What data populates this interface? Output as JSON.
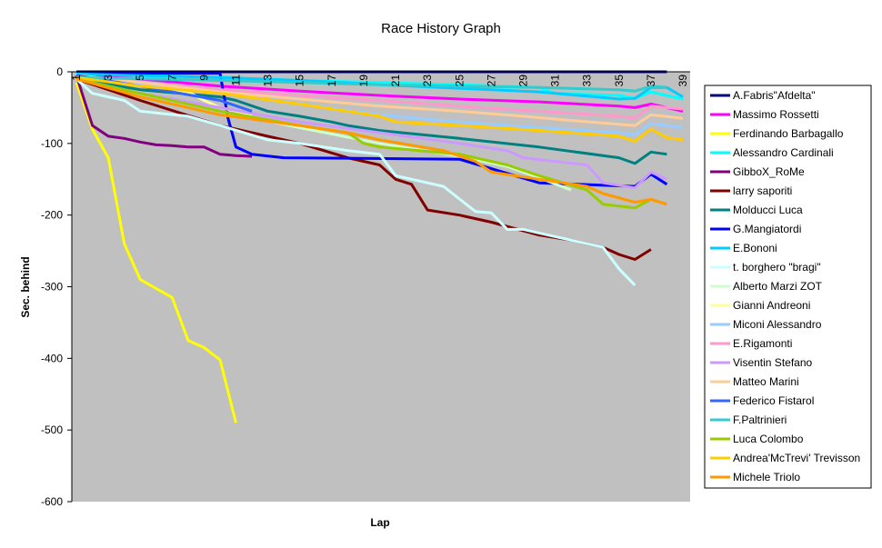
{
  "chart_data": {
    "type": "line",
    "title": "Race History Graph",
    "xlabel": "Lap",
    "ylabel": "Sec. behind",
    "xlim": [
      1,
      39
    ],
    "ylim": [
      -600,
      0
    ],
    "y_ticks": [
      0,
      -100,
      -200,
      -300,
      -400,
      -500,
      -600
    ],
    "x_ticks": [
      1,
      3,
      5,
      7,
      9,
      11,
      13,
      15,
      17,
      19,
      21,
      23,
      25,
      27,
      29,
      31,
      33,
      35,
      37,
      39
    ],
    "grid": false,
    "plot_background": "#c0c0c0",
    "legend_position": "right",
    "series": [
      {
        "name": "A.Fabris\"Afdelta\"",
        "color": "#000080",
        "points": [
          [
            1,
            0
          ],
          [
            38,
            0
          ]
        ]
      },
      {
        "name": "Massimo Rossetti",
        "color": "#ff00ff",
        "points": [
          [
            1,
            -5
          ],
          [
            5,
            -10
          ],
          [
            10,
            -20
          ],
          [
            15,
            -27
          ],
          [
            20,
            -33
          ],
          [
            25,
            -38
          ],
          [
            30,
            -42
          ],
          [
            35,
            -48
          ],
          [
            36,
            -50
          ],
          [
            37,
            -45
          ],
          [
            39,
            -55
          ]
        ]
      },
      {
        "name": "Ferdinando Barbagallo",
        "color": "#ffff00",
        "points": [
          [
            1,
            -15
          ],
          [
            2,
            -80
          ],
          [
            3,
            -120
          ],
          [
            4,
            -240
          ],
          [
            5,
            -290
          ],
          [
            7,
            -315
          ],
          [
            8,
            -375
          ],
          [
            9,
            -385
          ],
          [
            10,
            -402
          ],
          [
            11,
            -490
          ]
        ]
      },
      {
        "name": "Alessandro Cardinali",
        "color": "#00ffff",
        "points": [
          [
            1,
            -2
          ],
          [
            5,
            -5
          ],
          [
            10,
            -8
          ],
          [
            15,
            -12
          ],
          [
            20,
            -15
          ],
          [
            25,
            -18
          ],
          [
            30,
            -22
          ],
          [
            31,
            -30
          ],
          [
            35,
            -33
          ],
          [
            36,
            -37
          ],
          [
            37,
            -28
          ],
          [
            39,
            -38
          ]
        ]
      },
      {
        "name": "GibboX_RoMe",
        "color": "#800080",
        "points": [
          [
            1,
            -5
          ],
          [
            2,
            -75
          ],
          [
            3,
            -90
          ],
          [
            4,
            -93
          ],
          [
            5,
            -98
          ],
          [
            6,
            -102
          ],
          [
            7,
            -103
          ],
          [
            8,
            -105
          ],
          [
            9,
            -105
          ],
          [
            10,
            -115
          ],
          [
            11,
            -117
          ],
          [
            12,
            -118
          ]
        ]
      },
      {
        "name": "larry saporiti",
        "color": "#800000",
        "points": [
          [
            1,
            -10
          ],
          [
            5,
            -40
          ],
          [
            10,
            -75
          ],
          [
            15,
            -100
          ],
          [
            18,
            -120
          ],
          [
            20,
            -130
          ],
          [
            21,
            -150
          ],
          [
            22,
            -157
          ],
          [
            23,
            -193
          ],
          [
            25,
            -200
          ],
          [
            27,
            -210
          ],
          [
            30,
            -228
          ],
          [
            32,
            -235
          ],
          [
            34,
            -245
          ],
          [
            35,
            -255
          ],
          [
            36,
            -262
          ],
          [
            37,
            -248
          ]
        ]
      },
      {
        "name": "Molducci Luca",
        "color": "#008080",
        "points": [
          [
            1,
            -10
          ],
          [
            5,
            -25
          ],
          [
            10,
            -35
          ],
          [
            11,
            -40
          ],
          [
            13,
            -55
          ],
          [
            15,
            -62
          ],
          [
            17,
            -70
          ],
          [
            18,
            -75
          ],
          [
            20,
            -82
          ],
          [
            25,
            -93
          ],
          [
            30,
            -105
          ],
          [
            35,
            -120
          ],
          [
            36,
            -128
          ],
          [
            37,
            -112
          ],
          [
            38,
            -115
          ]
        ]
      },
      {
        "name": "G.Mangiatordi",
        "color": "#0000ff",
        "points": [
          [
            1,
            -2
          ],
          [
            10,
            -2
          ],
          [
            10.5,
            -65
          ],
          [
            11,
            -105
          ],
          [
            12,
            -115
          ],
          [
            14,
            -120
          ],
          [
            25,
            -122
          ],
          [
            30,
            -155
          ],
          [
            36,
            -160
          ],
          [
            37,
            -143
          ],
          [
            38,
            -157
          ]
        ]
      },
      {
        "name": "E.Bononi",
        "color": "#00ccff",
        "points": [
          [
            1,
            -3
          ],
          [
            10,
            -8
          ],
          [
            15,
            -12
          ],
          [
            20,
            -18
          ],
          [
            25,
            -23
          ],
          [
            30,
            -28
          ],
          [
            33,
            -34
          ],
          [
            35,
            -38
          ],
          [
            36,
            -37
          ],
          [
            37,
            -22
          ],
          [
            38,
            -22
          ],
          [
            39,
            -35
          ]
        ]
      },
      {
        "name": "t. borghero \"bragi\"",
        "color": "#ccffff",
        "points": [
          [
            1,
            -10
          ],
          [
            2,
            -30
          ],
          [
            3,
            -35
          ],
          [
            4,
            -40
          ],
          [
            5,
            -55
          ],
          [
            8,
            -62
          ],
          [
            10,
            -75
          ],
          [
            13,
            -95
          ],
          [
            15,
            -100
          ],
          [
            18,
            -110
          ],
          [
            20,
            -115
          ],
          [
            21,
            -145
          ],
          [
            23,
            -155
          ],
          [
            24,
            -160
          ],
          [
            26,
            -195
          ],
          [
            27,
            -197
          ],
          [
            28,
            -220
          ],
          [
            29,
            -220
          ],
          [
            30,
            -225
          ],
          [
            33,
            -240
          ],
          [
            34,
            -245
          ],
          [
            35,
            -275
          ],
          [
            36,
            -298
          ]
        ]
      },
      {
        "name": "Alberto Marzi ZOT",
        "color": "#ccffcc",
        "points": [
          [
            1,
            -10
          ],
          [
            5,
            -30
          ],
          [
            10,
            -55
          ],
          [
            15,
            -78
          ],
          [
            20,
            -100
          ],
          [
            25,
            -118
          ],
          [
            28,
            -132
          ],
          [
            30,
            -148
          ],
          [
            32,
            -165
          ]
        ]
      },
      {
        "name": "Gianni Andreoni",
        "color": "#ffff99",
        "points": [
          [
            1,
            -5
          ],
          [
            5,
            -20
          ],
          [
            8,
            -28
          ],
          [
            9,
            -40
          ],
          [
            10,
            -50
          ],
          [
            12,
            -60
          ]
        ]
      },
      {
        "name": "Miconi Alessandro",
        "color": "#99ccff",
        "points": [
          [
            1,
            -5
          ],
          [
            10,
            -30
          ],
          [
            15,
            -45
          ],
          [
            20,
            -60
          ],
          [
            25,
            -70
          ],
          [
            30,
            -78
          ],
          [
            35,
            -85
          ],
          [
            36,
            -88
          ],
          [
            37,
            -72
          ],
          [
            39,
            -78
          ]
        ]
      },
      {
        "name": "E.Rigamonti",
        "color": "#ff99cc",
        "points": [
          [
            1,
            -5
          ],
          [
            5,
            -15
          ],
          [
            10,
            -25
          ],
          [
            15,
            -33
          ],
          [
            20,
            -40
          ],
          [
            25,
            -48
          ],
          [
            30,
            -55
          ],
          [
            35,
            -62
          ],
          [
            36,
            -65
          ],
          [
            37,
            -48
          ],
          [
            39,
            -52
          ]
        ]
      },
      {
        "name": "Visentin Stefano",
        "color": "#cc99ff",
        "points": [
          [
            1,
            -10
          ],
          [
            5,
            -30
          ],
          [
            10,
            -50
          ],
          [
            15,
            -70
          ],
          [
            20,
            -85
          ],
          [
            25,
            -100
          ],
          [
            28,
            -110
          ],
          [
            29,
            -120
          ],
          [
            33,
            -130
          ],
          [
            34,
            -155
          ],
          [
            36,
            -162
          ],
          [
            37,
            -140
          ],
          [
            38,
            -150
          ]
        ]
      },
      {
        "name": "Matteo Marini",
        "color": "#ffcc99",
        "points": [
          [
            1,
            -5
          ],
          [
            5,
            -15
          ],
          [
            10,
            -28
          ],
          [
            15,
            -38
          ],
          [
            20,
            -48
          ],
          [
            25,
            -55
          ],
          [
            29,
            -62
          ],
          [
            32,
            -68
          ],
          [
            36,
            -75
          ],
          [
            37,
            -60
          ],
          [
            39,
            -65
          ]
        ]
      },
      {
        "name": "Federico Fistarol",
        "color": "#3366ff",
        "points": [
          [
            1,
            -5
          ],
          [
            5,
            -20
          ],
          [
            10,
            -40
          ],
          [
            12,
            -55
          ]
        ]
      },
      {
        "name": "F.Paltrinieri",
        "color": "#33cccc",
        "points": [
          [
            1,
            -8
          ],
          [
            10,
            -12
          ],
          [
            15,
            -15
          ],
          [
            20,
            -18
          ],
          [
            25,
            -20
          ],
          [
            30,
            -22
          ],
          [
            35,
            -25
          ],
          [
            36,
            -27
          ],
          [
            37,
            -20
          ],
          [
            38,
            -22
          ]
        ]
      },
      {
        "name": "Luca Colombo",
        "color": "#99cc00",
        "points": [
          [
            1,
            -10
          ],
          [
            5,
            -30
          ],
          [
            10,
            -55
          ],
          [
            15,
            -75
          ],
          [
            18,
            -85
          ],
          [
            19,
            -100
          ],
          [
            20,
            -105
          ],
          [
            25,
            -115
          ],
          [
            28,
            -130
          ],
          [
            30,
            -145
          ],
          [
            33,
            -165
          ],
          [
            34,
            -185
          ],
          [
            36,
            -190
          ],
          [
            37,
            -178
          ],
          [
            38,
            -185
          ]
        ]
      },
      {
        "name": "Andrea'McTrevi' Trevisson",
        "color": "#ffcc00",
        "points": [
          [
            1,
            -8
          ],
          [
            5,
            -20
          ],
          [
            10,
            -30
          ],
          [
            15,
            -45
          ],
          [
            18,
            -55
          ],
          [
            20,
            -62
          ],
          [
            21,
            -70
          ],
          [
            25,
            -75
          ],
          [
            30,
            -82
          ],
          [
            35,
            -90
          ],
          [
            36,
            -97
          ],
          [
            37,
            -80
          ],
          [
            38,
            -92
          ],
          [
            39,
            -95
          ]
        ]
      },
      {
        "name": "Michele Triolo",
        "color": "#ff9900",
        "points": [
          [
            1,
            -10
          ],
          [
            5,
            -35
          ],
          [
            10,
            -60
          ],
          [
            15,
            -75
          ],
          [
            18,
            -85
          ],
          [
            20,
            -95
          ],
          [
            24,
            -110
          ],
          [
            26,
            -125
          ],
          [
            27,
            -140
          ],
          [
            30,
            -150
          ],
          [
            33,
            -160
          ],
          [
            34,
            -170
          ],
          [
            36,
            -182
          ],
          [
            37,
            -178
          ],
          [
            38,
            -185
          ]
        ]
      }
    ]
  }
}
